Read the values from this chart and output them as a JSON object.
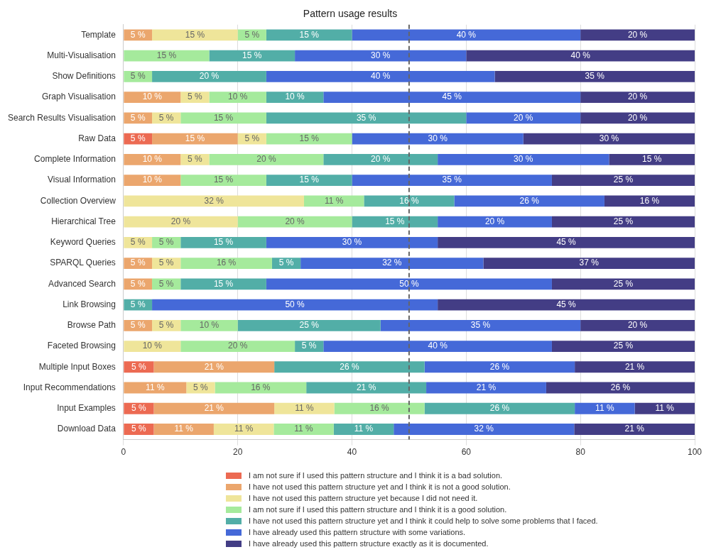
{
  "chart_data": {
    "type": "bar",
    "orientation": "horizontal",
    "stacked": true,
    "title": "Pattern usage results",
    "categories": [
      "Template",
      "Multi-Visualisation",
      "Show Definitions",
      "Graph Visualisation",
      "Search Results Visualisation",
      "Raw Data",
      "Complete Information",
      "Visual Information",
      "Collection Overview",
      "Hierarchical Tree",
      "Keyword Queries",
      "SPARQL Queries",
      "Advanced Search",
      "Link Browsing",
      "Browse Path",
      "Faceted Browsing",
      "Multiple Input Boxes",
      "Input Recommendations",
      "Input Examples",
      "Download Data"
    ],
    "series": [
      {
        "name": "I am not sure if I used this pattern structure and I think it is a bad solution.",
        "color": "#ec6a52",
        "values": [
          null,
          null,
          null,
          null,
          null,
          5,
          null,
          null,
          null,
          null,
          null,
          null,
          null,
          null,
          null,
          null,
          5.3,
          null,
          5.3,
          5.3
        ],
        "value_labels": [
          null,
          null,
          null,
          null,
          null,
          "5 %",
          null,
          null,
          null,
          null,
          null,
          null,
          null,
          null,
          null,
          null,
          "5 %",
          null,
          "5 %",
          "5 %"
        ]
      },
      {
        "name": "I have not used this pattern structure yet and I think it is not a good solution.",
        "color": "#eba66d",
        "values": [
          5,
          null,
          null,
          10,
          5,
          15,
          10,
          10,
          null,
          null,
          null,
          5,
          5,
          null,
          5,
          null,
          21.1,
          11,
          21.1,
          10.5
        ],
        "value_labels": [
          "5 %",
          null,
          null,
          "10 %",
          "5 %",
          "15 %",
          "10 %",
          "10 %",
          null,
          null,
          null,
          "5 %",
          "5 %",
          null,
          "5 %",
          null,
          "21 %",
          "11 %",
          "21 %",
          "11 %"
        ]
      },
      {
        "name": "I have not used this pattern structure yet because I did not need it.",
        "color": "#efe59a",
        "values": [
          15,
          null,
          null,
          5,
          5,
          5,
          5,
          null,
          31.6,
          20,
          5,
          5,
          null,
          null,
          5,
          10,
          null,
          5,
          10.5,
          10.5
        ],
        "value_labels": [
          "15 %",
          null,
          null,
          "5 %",
          "5 %",
          "5 %",
          "5 %",
          null,
          "32 %",
          "20 %",
          "5 %",
          "5 %",
          null,
          null,
          "5 %",
          "10 %",
          null,
          "5 %",
          "11 %",
          "11 %"
        ]
      },
      {
        "name": "I am not sure if I used this pattern structure and I think it is a good solution.",
        "color": "#a5ea9c",
        "values": [
          5,
          15,
          5,
          10,
          15,
          15,
          20,
          15,
          10.5,
          20,
          5,
          16,
          5,
          null,
          10,
          20,
          null,
          16,
          15.8,
          10.5
        ],
        "value_labels": [
          "5 %",
          "15 %",
          "5 %",
          "10 %",
          "15 %",
          "15 %",
          "20 %",
          "15 %",
          "11 %",
          "20 %",
          "5 %",
          "16 %",
          "5 %",
          null,
          "10 %",
          "20 %",
          null,
          "16 %",
          "16 %",
          "11 %"
        ]
      },
      {
        "name": "I have not used this pattern structure yet and I think it could help to solve some problems that I faced.",
        "color": "#52aea7",
        "values": [
          15,
          15,
          20,
          10,
          35,
          null,
          20,
          15,
          15.8,
          15,
          15,
          5,
          15,
          5,
          25,
          5,
          26.3,
          21,
          26.3,
          10.5
        ],
        "value_labels": [
          "15 %",
          "15 %",
          "20 %",
          "10 %",
          "35 %",
          null,
          "20 %",
          "15 %",
          "16 %",
          "15 %",
          "15 %",
          "5 %",
          "15 %",
          "5 %",
          "25 %",
          "5 %",
          "26 %",
          "21 %",
          "26 %",
          "11 %"
        ]
      },
      {
        "name": "I have already used this pattern structure with some variations.",
        "color": "#4569d8",
        "values": [
          40,
          30,
          40,
          45,
          20,
          30,
          30,
          35,
          26.3,
          20,
          30,
          32,
          50,
          50,
          35,
          40,
          26.3,
          21,
          10.5,
          31.6
        ],
        "value_labels": [
          "40 %",
          "30 %",
          "40 %",
          "45 %",
          "20 %",
          "30 %",
          "30 %",
          "35 %",
          "26 %",
          "20 %",
          "30 %",
          "32 %",
          "50 %",
          "50 %",
          "35 %",
          "40 %",
          "26 %",
          "21 %",
          "11 %",
          "32 %"
        ]
      },
      {
        "name": "I have already used this pattern structure exactly as it is documented.",
        "color": "#433d85",
        "values": [
          20,
          40,
          35,
          20,
          20,
          30,
          15,
          25,
          15.8,
          25,
          45,
          37,
          25,
          45,
          20,
          25,
          21,
          26,
          10.5,
          21.1
        ],
        "value_labels": [
          "20 %",
          "40 %",
          "35 %",
          "20 %",
          "20 %",
          "30 %",
          "15 %",
          "25 %",
          "16 %",
          "25 %",
          "45 %",
          "37 %",
          "25 %",
          "45 %",
          "20 %",
          "25 %",
          "21 %",
          "26 %",
          "11 %",
          "21 %"
        ]
      }
    ],
    "xlim": [
      0,
      100
    ],
    "xticks": [
      0,
      20,
      40,
      60,
      80,
      100
    ],
    "ref_lines": [
      {
        "axis": "x",
        "value": 50,
        "color": "#666666",
        "line_style": "dashed"
      }
    ],
    "grid": "x",
    "legend": "bottom"
  }
}
